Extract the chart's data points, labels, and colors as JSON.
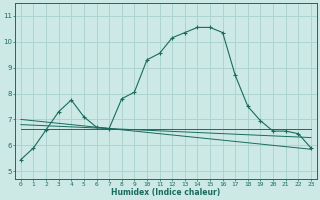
{
  "xlabel": "Humidex (Indice chaleur)",
  "ylabel": "",
  "bg_color": "#cce9e5",
  "grid_color": "#aed4cf",
  "line_color": "#1a6b5e",
  "x_ticks": [
    0,
    1,
    2,
    3,
    4,
    5,
    6,
    7,
    8,
    9,
    10,
    11,
    12,
    13,
    14,
    15,
    16,
    17,
    18,
    19,
    20,
    21,
    22,
    23
  ],
  "y_ticks": [
    5,
    6,
    7,
    8,
    9,
    10,
    11
  ],
  "ylim": [
    4.7,
    11.5
  ],
  "xlim": [
    -0.5,
    23.5
  ],
  "main_series": {
    "x": [
      0,
      1,
      2,
      3,
      4,
      5,
      6,
      7,
      8,
      9,
      10,
      11,
      12,
      13,
      14,
      15,
      16,
      17,
      18,
      19,
      20,
      21,
      22,
      23
    ],
    "y": [
      5.45,
      5.9,
      6.6,
      7.3,
      7.75,
      7.1,
      6.7,
      6.65,
      7.8,
      8.05,
      9.3,
      9.55,
      10.15,
      10.35,
      10.55,
      10.55,
      10.35,
      8.7,
      7.5,
      6.95,
      6.55,
      6.55,
      6.45,
      5.9
    ]
  },
  "ref_lines": [
    {
      "x": [
        0,
        23
      ],
      "y": [
        6.65,
        6.65
      ]
    },
    {
      "x": [
        0,
        23
      ],
      "y": [
        6.8,
        6.3
      ]
    },
    {
      "x": [
        0,
        23
      ],
      "y": [
        7.0,
        5.85
      ]
    }
  ]
}
